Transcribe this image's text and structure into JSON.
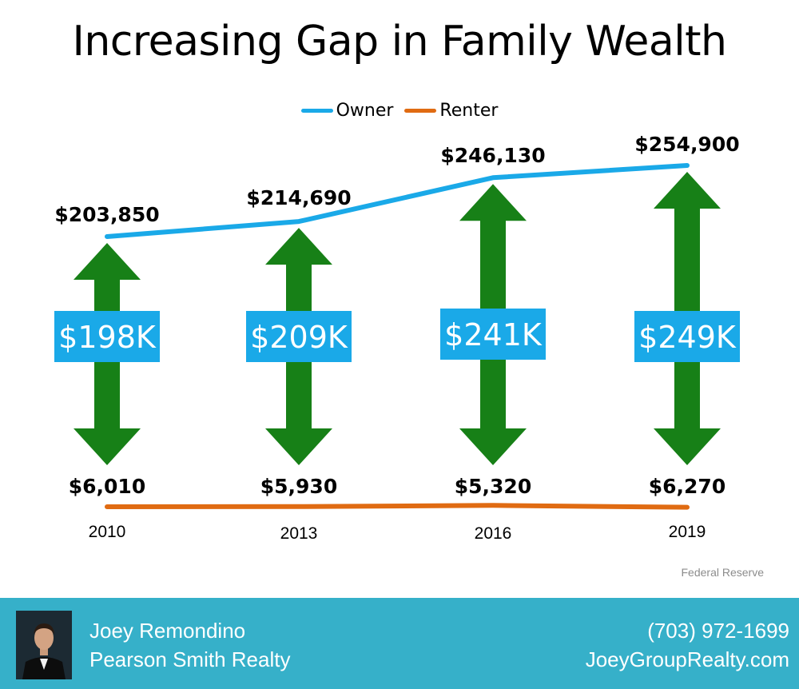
{
  "title": "Increasing Gap in Family Wealth",
  "source": "Federal Reserve",
  "colors": {
    "owner": "#1aa9e8",
    "renter": "#e06b12",
    "arrow": "#178017",
    "gap_box": "#1aa9e8",
    "footer": "#36b0c9"
  },
  "chart_data": {
    "type": "line",
    "x": [
      "2010",
      "2013",
      "2016",
      "2019"
    ],
    "series": [
      {
        "name": "Owner",
        "values": [
          203850,
          214690,
          246130,
          254900
        ],
        "labels": [
          "$203,850",
          "$214,690",
          "$246,130",
          "$254,900"
        ]
      },
      {
        "name": "Renter",
        "values": [
          6010,
          5930,
          5320,
          6270
        ],
        "labels": [
          "$6,010",
          "$5,930",
          "$5,320",
          "$6,270"
        ]
      }
    ],
    "gap_labels": [
      "$198K",
      "$209K",
      "$241K",
      "$249K"
    ],
    "legend_position": "top-center",
    "grid": false
  },
  "footer": {
    "name": "Joey Remondino",
    "company": "Pearson Smith Realty",
    "phone": "(703) 972-1699",
    "website": "JoeyGroupRealty.com",
    "avatar_icon": "agent-photo-icon"
  }
}
